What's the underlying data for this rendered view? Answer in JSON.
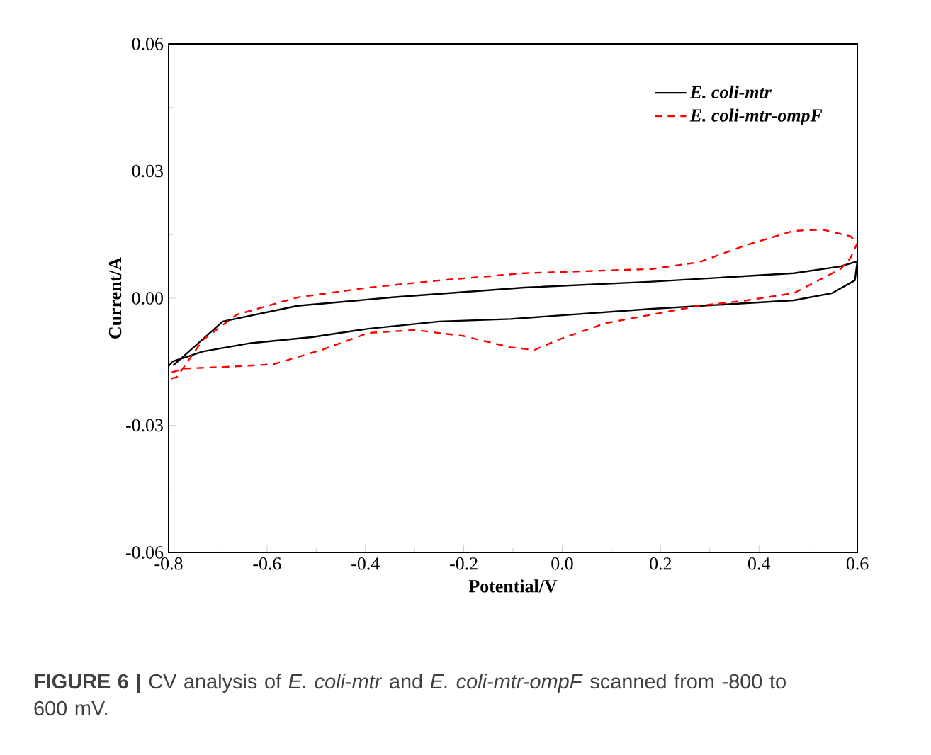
{
  "chart_data": {
    "type": "line",
    "xlabel": "Potential/V",
    "ylabel": "Current/A",
    "annotations": [
      "**FIGURE 6 |** CV analysis of *E. coli-mtr* and *E. coli-mtr-ompF* scanned from -800 to 600 mV."
    ],
    "xlim": [
      -0.8,
      0.6
    ],
    "ylim": [
      -0.06,
      0.06
    ],
    "xticks": [
      -0.8,
      -0.6,
      -0.4,
      -0.2,
      {
        "value": 0,
        "label": "0.0"
      },
      0.2,
      0.4,
      0.6
    ],
    "yticks": [
      -0.06,
      -0.03,
      {
        "value": 0,
        "label": "0.00"
      },
      0.03,
      0.06
    ],
    "legend": "top right",
    "grid": false,
    "marker": "none",
    "series": [
      {
        "name": "E. coli-mtr",
        "color": "#000000",
        "line_style": "solid",
        "x": [
          -0.791,
          -0.69,
          -0.538,
          -0.345,
          -0.077,
          0.183,
          0.471,
          0.566,
          0.6,
          0.595,
          0.549,
          0.471,
          0.183,
          -0.105,
          -0.25,
          -0.394,
          -0.509,
          -0.633,
          -0.731,
          -0.791,
          -0.8
        ],
        "values": [
          -0.0159,
          -0.0055,
          -0.0018,
          0.0002,
          0.0025,
          0.0039,
          0.0059,
          0.0075,
          0.0087,
          0.0042,
          0.0012,
          -0.0005,
          -0.0025,
          -0.0049,
          -0.0055,
          -0.0072,
          -0.0092,
          -0.0106,
          -0.0126,
          -0.0149,
          -0.016
        ]
      },
      {
        "name": "E. coli-mtr-ompF",
        "color": "#ff0000",
        "line_style": "dashed",
        "x": [
          -0.795,
          -0.783,
          -0.731,
          -0.662,
          -0.538,
          -0.394,
          -0.25,
          -0.077,
          0.183,
          0.278,
          0.376,
          0.471,
          0.529,
          0.586,
          0.6,
          0.586,
          0.566,
          0.471,
          0.376,
          0.278,
          0.088,
          -0.01,
          -0.056,
          -0.105,
          -0.201,
          -0.299,
          -0.394,
          -0.489,
          -0.587,
          -0.682,
          -0.768,
          -0.797
        ],
        "values": [
          -0.019,
          -0.0186,
          -0.0099,
          -0.0039,
          0.0002,
          0.0025,
          0.0042,
          0.0059,
          0.0069,
          0.0085,
          0.0126,
          0.0159,
          0.0162,
          0.0146,
          0.013,
          0.0095,
          0.0069,
          0.0012,
          -0.0005,
          -0.0018,
          -0.0059,
          -0.0099,
          -0.0122,
          -0.0116,
          -0.0089,
          -0.0075,
          -0.0082,
          -0.0122,
          -0.0156,
          -0.0162,
          -0.0166,
          -0.0176
        ]
      }
    ]
  }
}
